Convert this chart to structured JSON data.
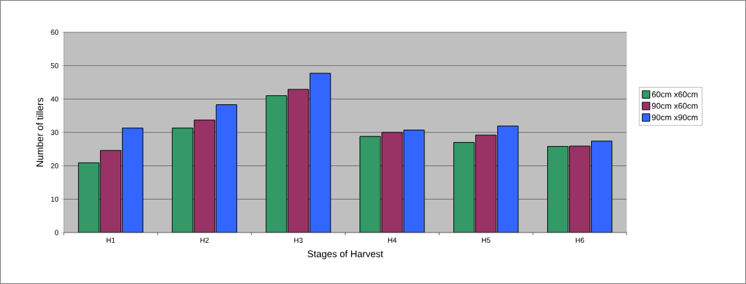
{
  "chart_data": {
    "type": "bar",
    "xlabel": "Stages of Harvest",
    "ylabel": "Number of tillers",
    "categories": [
      "H1",
      "H2",
      "H3",
      "H4",
      "H5",
      "H6"
    ],
    "series": [
      {
        "name": "60cm x60cm",
        "color": "#339966",
        "values": [
          20.9,
          31.3,
          41.0,
          28.8,
          27.0,
          25.8
        ]
      },
      {
        "name": "90cm x60cm",
        "color": "#993366",
        "values": [
          24.6,
          33.7,
          42.9,
          30.0,
          29.2,
          25.9
        ]
      },
      {
        "name": "90cm x90cm",
        "color": "#3366ff",
        "values": [
          31.3,
          38.3,
          47.7,
          30.7,
          31.9,
          27.4
        ]
      }
    ],
    "ylim": [
      0,
      60
    ],
    "yticks": [
      0,
      10,
      20,
      30,
      40,
      50,
      60
    ],
    "grid": "y",
    "legend": "right"
  }
}
